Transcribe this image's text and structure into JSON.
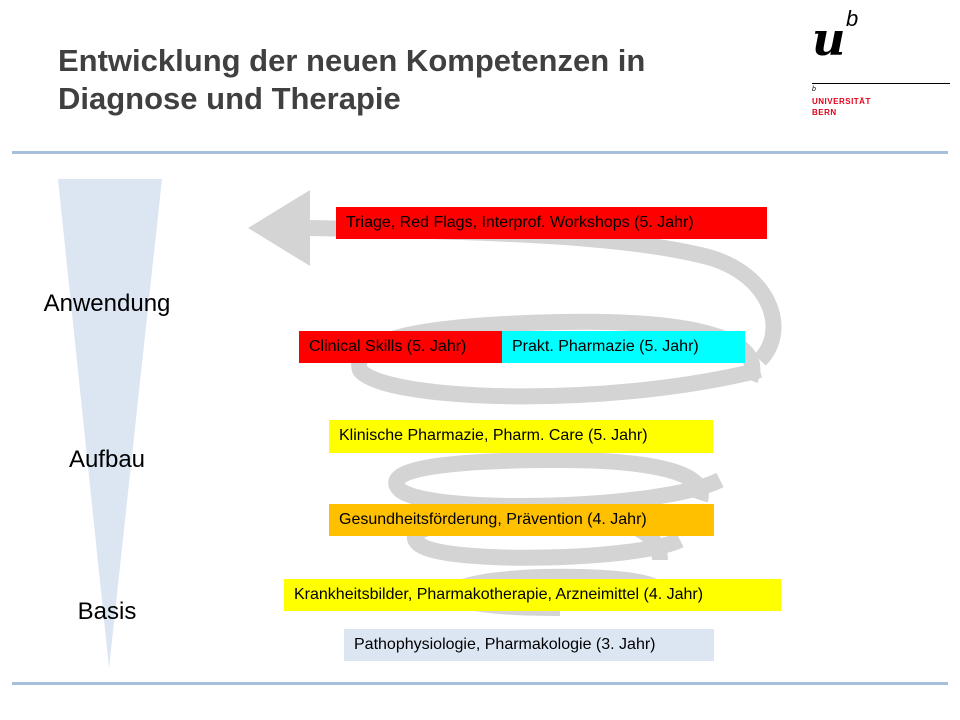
{
  "title": {
    "line1": "Entwicklung der neuen Kompetenzen in",
    "line2": "Diagnose und Therapie"
  },
  "logo": {
    "mark": "u",
    "superscript": "b",
    "small_b": "b",
    "name_line1": "UNIVERSITÄT",
    "name_line2": "BERN",
    "color": "#e2001a"
  },
  "levels": [
    "Anwendung",
    "Aufbau",
    "Basis"
  ],
  "boxes": [
    {
      "label": "Triage, Red Flags, Interprof. Workshops (5. Jahr)",
      "color": "#ff0000"
    },
    {
      "label": "Clinical Skills (5. Jahr)",
      "color": "#ff0000"
    },
    {
      "label": "Prakt. Pharmazie (5. Jahr)",
      "color": "#00ffff"
    },
    {
      "label": "Klinische Pharmazie, Pharm. Care (5. Jahr)",
      "color": "#ffff00"
    },
    {
      "label": "Gesundheitsförderung, Prävention (4. Jahr)",
      "color": "#ffc000"
    },
    {
      "label": "Krankheitsbilder, Pharmakotherapie, Arzneimittel (4. Jahr)",
      "color": "#ffff00"
    },
    {
      "label": "Pathophysiologie, Pharmakologie (3. Jahr)",
      "color": "#dce6f2"
    }
  ]
}
